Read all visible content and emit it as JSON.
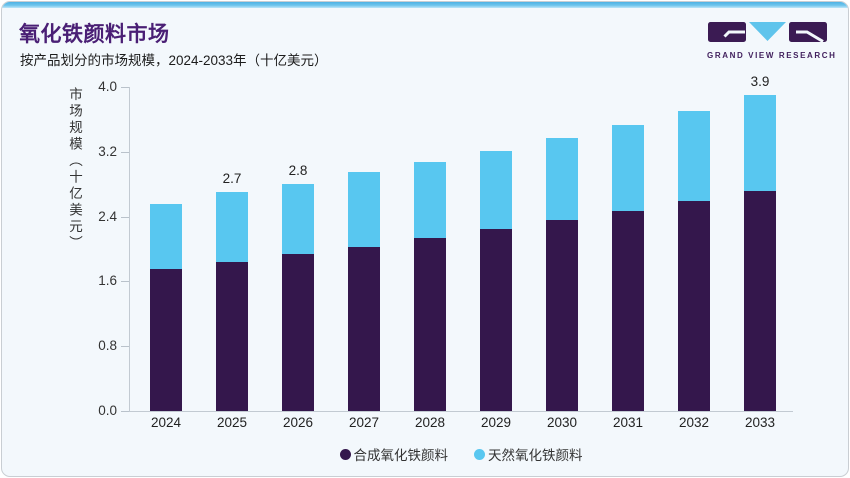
{
  "page": {
    "card_bg": "#f3f8fc",
    "border_color": "#c9ced3",
    "accent_blue": "#4db2e4"
  },
  "header": {
    "title": "氧化铁颜料市场",
    "subtitle": "按产品划分的市场规模，2024-2033年（十亿美元）",
    "title_color": "#4a1f75"
  },
  "logo": {
    "brand": "GRAND VIEW RESEARCH",
    "purple": "#3b1b53",
    "blue": "#5fc4ec"
  },
  "chart_data": {
    "type": "bar",
    "stacked": true,
    "title": "氧化铁颜料市场",
    "subtitle": "按产品划分的市场规模，2024-2033年（十亿美元）",
    "categories": [
      "2024",
      "2025",
      "2026",
      "2027",
      "2028",
      "2029",
      "2030",
      "2031",
      "2032",
      "2033"
    ],
    "series": [
      {
        "name": "合成氧化铁颜料",
        "color": "#34174c",
        "values": [
          1.75,
          1.84,
          1.94,
          2.03,
          2.14,
          2.25,
          2.36,
          2.47,
          2.59,
          2.72
        ]
      },
      {
        "name": "天然氧化铁颜料",
        "color": "#58c7f0",
        "values": [
          0.8,
          0.86,
          0.86,
          0.92,
          0.94,
          0.96,
          1.01,
          1.06,
          1.11,
          1.18
        ]
      }
    ],
    "totals": [
      2.55,
      2.7,
      2.8,
      2.95,
      3.08,
      3.21,
      3.37,
      3.53,
      3.7,
      3.9
    ],
    "data_labels": {
      "2025": "2.7",
      "2026": "2.8",
      "2033": "3.9"
    },
    "xlabel": "",
    "ylabel": "市场规模（十亿美元）",
    "yticks": [
      "0.0",
      "0.8",
      "1.6",
      "2.4",
      "3.2",
      "4.0"
    ],
    "ylim": [
      0,
      4.0
    ],
    "grid": false,
    "legend_position": "bottom"
  }
}
